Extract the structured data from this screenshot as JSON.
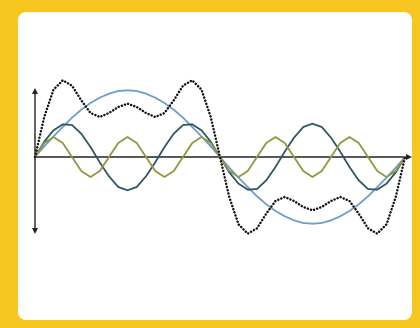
{
  "chart_data": {
    "type": "line",
    "x": [
      0,
      0.025,
      0.05,
      0.075,
      0.1,
      0.125,
      0.15,
      0.175,
      0.2,
      0.225,
      0.25,
      0.275,
      0.3,
      0.325,
      0.35,
      0.375,
      0.4,
      0.425,
      0.45,
      0.475,
      0.5,
      0.525,
      0.55,
      0.575,
      0.6,
      0.625,
      0.65,
      0.675,
      0.7,
      0.725,
      0.75,
      0.775,
      0.8,
      0.825,
      0.85,
      0.875,
      0.9,
      0.925,
      0.95,
      0.975,
      1
    ],
    "xlim": [
      0,
      1
    ],
    "ylim": [
      -1.2,
      1.2
    ],
    "series": [
      {
        "color": "#6d9dcb",
        "style": "solid",
        "values": [
          0,
          0.16,
          0.31,
          0.45,
          0.59,
          0.71,
          0.81,
          0.89,
          0.95,
          0.99,
          1,
          0.99,
          0.95,
          0.89,
          0.81,
          0.71,
          0.59,
          0.45,
          0.31,
          0.16,
          0,
          -0.16,
          -0.31,
          -0.45,
          -0.59,
          -0.71,
          -0.81,
          -0.89,
          -0.95,
          -0.99,
          -1,
          -0.99,
          -0.95,
          -0.89,
          -0.81,
          -0.71,
          -0.59,
          -0.45,
          -0.31,
          -0.16,
          0
        ]
      },
      {
        "color": "#2f5566",
        "style": "solid",
        "values": [
          0,
          0.23,
          0.4,
          0.49,
          0.48,
          0.35,
          0.15,
          -0.08,
          -0.29,
          -0.45,
          -0.5,
          -0.45,
          -0.29,
          -0.08,
          0.15,
          0.35,
          0.48,
          0.49,
          0.4,
          0.23,
          0,
          -0.23,
          -0.4,
          -0.49,
          -0.48,
          -0.35,
          -0.15,
          0.08,
          0.29,
          0.45,
          0.5,
          0.45,
          0.29,
          0.08,
          -0.15,
          -0.35,
          -0.48,
          -0.49,
          -0.4,
          -0.23,
          0
        ]
      },
      {
        "color": "#8c9a3c",
        "style": "solid",
        "values": [
          0,
          0.21,
          0.3,
          0.21,
          0,
          -0.21,
          -0.3,
          -0.21,
          0,
          0.21,
          0.3,
          0.21,
          0,
          -0.21,
          -0.3,
          -0.21,
          0,
          0.21,
          0.3,
          0.21,
          0,
          -0.21,
          -0.3,
          -0.21,
          0,
          0.21,
          0.3,
          0.21,
          0,
          -0.21,
          -0.3,
          -0.21,
          0,
          0.21,
          0.3,
          0.21,
          0,
          -0.21,
          -0.3,
          -0.21,
          0
        ]
      },
      {
        "color": "#111111",
        "style": "dotted",
        "values": [
          0,
          0.6,
          1.01,
          1.15,
          1.07,
          0.85,
          0.66,
          0.6,
          0.66,
          0.75,
          0.8,
          0.75,
          0.66,
          0.6,
          0.66,
          0.85,
          1.07,
          1.15,
          1.01,
          0.6,
          0,
          -0.6,
          -1.01,
          -1.15,
          -1.07,
          -0.85,
          -0.66,
          -0.6,
          -0.66,
          -0.75,
          -0.8,
          -0.75,
          -0.66,
          -0.6,
          -0.66,
          -0.85,
          -1.07,
          -1.15,
          -1.01,
          -0.6,
          0
        ]
      }
    ]
  }
}
